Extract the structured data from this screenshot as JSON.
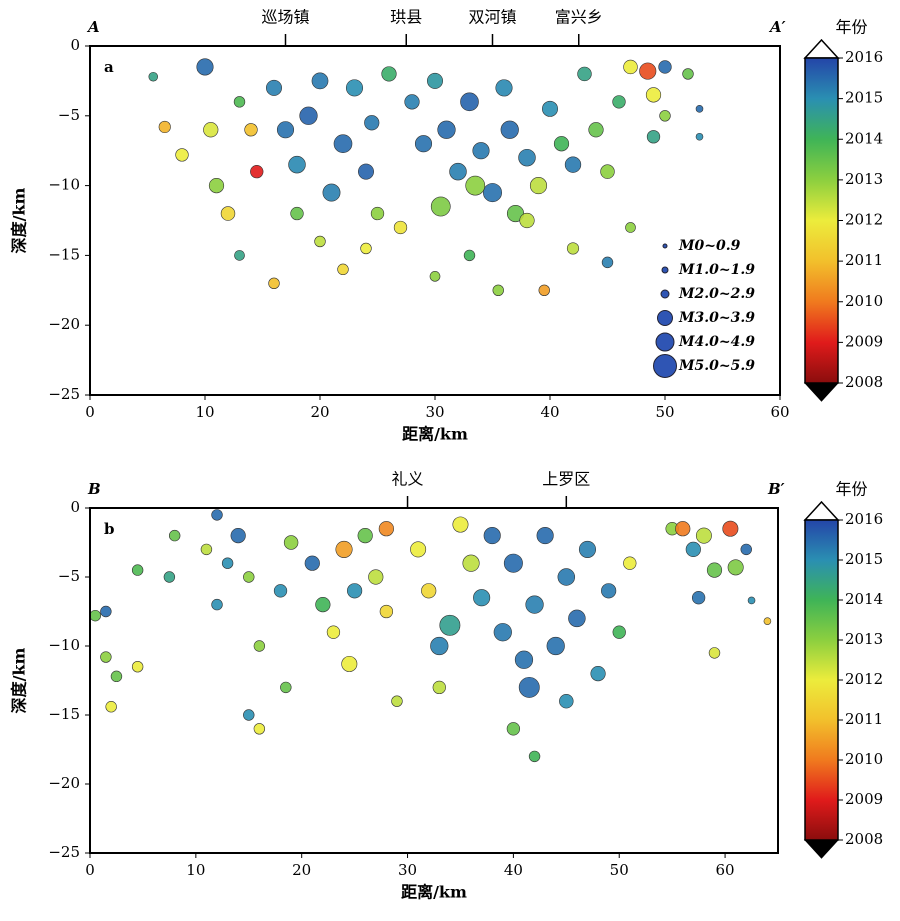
{
  "chart_data": [
    {
      "type": "scatter",
      "panel": "a",
      "start": "A",
      "end": "A′",
      "towns": [
        {
          "name": "巡场镇",
          "x": 17
        },
        {
          "name": "珙县",
          "x": 27.5
        },
        {
          "name": "双河镇",
          "x": 35
        },
        {
          "name": "富兴乡",
          "x": 42.5
        }
      ],
      "xlabel": "距离/km",
      "ylabel": "深度/km",
      "xlim": [
        0,
        60
      ],
      "xticks": [
        0,
        10,
        20,
        30,
        40,
        50,
        60
      ],
      "ylim": [
        -25,
        0
      ],
      "yticks": [
        {
          "value": -25,
          "label": "−25"
        },
        {
          "value": -20,
          "label": "−20"
        },
        {
          "value": -15,
          "label": "−15"
        },
        {
          "value": -10,
          "label": "−10"
        },
        {
          "value": -5,
          "label": "−5"
        },
        0
      ],
      "legend": [
        "M0~0.9",
        "M1.0~1.9",
        "M2.0~2.9",
        "M3.0~3.9",
        "M4.0~4.9",
        "M5.0~5.9"
      ],
      "colorbar": {
        "title": "年份",
        "range": [
          2008,
          2016
        ],
        "ticks": [
          2008,
          2009,
          2010,
          2011,
          2012,
          2013,
          2014,
          2015,
          2016
        ],
        "colors": [
          "#8a0d0d",
          "#e01b1b",
          "#f07a1e",
          "#f2c02c",
          "#ecec3c",
          "#8ccf3f",
          "#3fb457",
          "#2a8fb2",
          "#2445a8"
        ]
      },
      "x": [
        5.5,
        6.5,
        10,
        10.5,
        8,
        11,
        12,
        13,
        14,
        14.5,
        16,
        17,
        18,
        19,
        20,
        21,
        22,
        23,
        24,
        24.5,
        18,
        20,
        22,
        16,
        25,
        26,
        27,
        28,
        29,
        30,
        30.5,
        31,
        32,
        33,
        34,
        35,
        36,
        36.5,
        37,
        38,
        39,
        40,
        41,
        42,
        43,
        44,
        45,
        46,
        47,
        48.5,
        49,
        50,
        49,
        50,
        52,
        53,
        53,
        39.5,
        35.5,
        42,
        33,
        30,
        24,
        13,
        38,
        33.5,
        45,
        47
      ],
      "y": [
        -2.2,
        -5.8,
        -1.5,
        -6,
        -7.8,
        -10,
        -12,
        -4,
        -6,
        -9,
        -3,
        -6,
        -8.5,
        -5,
        -2.5,
        -10.5,
        -7,
        -3,
        -9,
        -5.5,
        -12,
        -14,
        -16,
        -17,
        -12,
        -2,
        -13,
        -4,
        -7,
        -2.5,
        -11.5,
        -6,
        -9,
        -4,
        -7.5,
        -10.5,
        -3,
        -6,
        -12,
        -8,
        -10,
        -4.5,
        -7,
        -8.5,
        -2,
        -6,
        -9,
        -4,
        -1.5,
        -1.8,
        -3.5,
        -1.5,
        -6.5,
        -5,
        -2,
        -4.5,
        -6.5,
        -17.5,
        -17.5,
        -14.5,
        -15,
        -16.5,
        -14.5,
        -15,
        -12.5,
        -10,
        -15.5,
        -13
      ],
      "magnitude": [
        1.5,
        2.2,
        3.5,
        3,
        2.5,
        3,
        2.8,
        2,
        2.5,
        2.5,
        3.2,
        3.5,
        3.6,
        3.8,
        3.4,
        3.7,
        3.9,
        3.5,
        3.2,
        3,
        2.5,
        2,
        2,
        2,
        2.5,
        3,
        2.5,
        3,
        3.5,
        3.2,
        4.2,
        3.8,
        3.6,
        3.9,
        3.5,
        4,
        3.5,
        3.8,
        3.5,
        3.6,
        3.5,
        3.2,
        3,
        3.3,
        2.8,
        3,
        2.8,
        2.5,
        2.8,
        3.5,
        3,
        2.5,
        2.5,
        2,
        2,
        1,
        1,
        2,
        2,
        2.2,
        2,
        1.8,
        2,
        1.8,
        3,
        4.2,
        2,
        1.8
      ],
      "year": [
        2014.5,
        2010.8,
        2015.5,
        2012.2,
        2012,
        2013,
        2011.5,
        2013.8,
        2011,
        2009,
        2015.2,
        2015.4,
        2015.1,
        2015.6,
        2015.3,
        2015.2,
        2015.5,
        2015,
        2015.6,
        2015.3,
        2013.5,
        2012.5,
        2011.5,
        2011,
        2013,
        2014.2,
        2011.8,
        2015.2,
        2015.4,
        2014.8,
        2013.2,
        2015.5,
        2015.2,
        2015.6,
        2015.3,
        2015.4,
        2015.1,
        2015.5,
        2013.5,
        2015.2,
        2012.5,
        2015,
        2014,
        2015.3,
        2014.5,
        2013.5,
        2013,
        2014.2,
        2012,
        2009.5,
        2012,
        2015.5,
        2014.5,
        2013,
        2013.5,
        2015.5,
        2015,
        2010.5,
        2013,
        2012.5,
        2014,
        2013,
        2012,
        2014.5,
        2012.5,
        2013,
        2015.2,
        2013
      ]
    },
    {
      "type": "scatter",
      "panel": "b",
      "start": "B",
      "end": "B′",
      "towns": [
        {
          "name": "礼义",
          "x": 30
        },
        {
          "name": "上罗区",
          "x": 45
        }
      ],
      "xlabel": "距离/km",
      "ylabel": "深度/km",
      "xlim": [
        0,
        65
      ],
      "xticks": [
        0,
        10,
        20,
        30,
        40,
        50,
        60
      ],
      "ylim": [
        -25,
        0
      ],
      "yticks": [
        {
          "value": -25,
          "label": "−25"
        },
        {
          "value": -20,
          "label": "−20"
        },
        {
          "value": -15,
          "label": "−15"
        },
        {
          "value": -10,
          "label": "−10"
        },
        {
          "value": -5,
          "label": "−5"
        },
        0
      ],
      "colorbar": {
        "title": "年份",
        "range": [
          2008,
          2016
        ],
        "ticks": [
          2008,
          2009,
          2010,
          2011,
          2012,
          2013,
          2014,
          2015,
          2016
        ],
        "colors": [
          "#8a0d0d",
          "#e01b1b",
          "#f07a1e",
          "#f2c02c",
          "#ecec3c",
          "#8ccf3f",
          "#3fb457",
          "#2a8fb2",
          "#2445a8"
        ]
      },
      "x": [
        0.5,
        1.5,
        1.5,
        2.5,
        2,
        4.5,
        4.5,
        8,
        7.5,
        11,
        12,
        13,
        12,
        14,
        15,
        15,
        16,
        16,
        18,
        19,
        18.5,
        21,
        22,
        23,
        24,
        25,
        24.5,
        26,
        27,
        28,
        28,
        29,
        31,
        32,
        33,
        34,
        33,
        35,
        36,
        37,
        38,
        39,
        40,
        41,
        41.5,
        42,
        43,
        44,
        45,
        46,
        47,
        48,
        49,
        40,
        42,
        45,
        50,
        51,
        55,
        56,
        57,
        58,
        59,
        60.5,
        61,
        57.5,
        59,
        62,
        62.5,
        64
      ],
      "y": [
        -7.8,
        -7.5,
        -10.8,
        -12.2,
        -14.4,
        -4.5,
        -11.5,
        -2,
        -5,
        -3,
        -0.5,
        -4,
        -7,
        -2,
        -5,
        -15,
        -10,
        -16,
        -6,
        -2.5,
        -13,
        -4,
        -7,
        -9,
        -3,
        -6,
        -11.3,
        -2,
        -5,
        -7.5,
        -1.5,
        -14,
        -3,
        -6,
        -10,
        -8.5,
        -13,
        -1.2,
        -4,
        -6.5,
        -2,
        -9,
        -4,
        -11,
        -13,
        -7,
        -2,
        -10,
        -5,
        -8,
        -3,
        -12,
        -6,
        -16,
        -18,
        -14,
        -9,
        -4,
        -1.5,
        -1.5,
        -3,
        -2,
        -4.5,
        -1.5,
        -4.3,
        -6.5,
        -10.5,
        -3,
        -6.7,
        -8.2
      ],
      "magnitude": [
        2,
        2,
        2,
        2,
        2,
        2,
        2,
        2,
        2,
        2,
        2,
        2,
        2,
        3,
        2,
        2,
        2,
        2,
        2.5,
        2.8,
        2,
        3,
        3,
        2.5,
        3.5,
        3,
        3.2,
        3,
        3,
        2.5,
        3,
        2,
        3.2,
        3,
        3.8,
        4.5,
        2.5,
        3.2,
        3.5,
        3.5,
        3.5,
        3.8,
        4,
        3.8,
        4.5,
        3.8,
        3.5,
        3.8,
        3.6,
        3.6,
        3.5,
        3,
        3,
        2.5,
        2,
        2.8,
        2.5,
        2.5,
        2.5,
        3,
        3,
        3.2,
        3,
        3.2,
        3.2,
        2.5,
        2,
        2,
        1,
        1
      ],
      "year": [
        2013.5,
        2015.5,
        2013,
        2013.5,
        2012,
        2013.8,
        2012,
        2013.5,
        2014.5,
        2012.5,
        2015.5,
        2015,
        2015,
        2015.5,
        2013,
        2015,
        2013,
        2012,
        2015,
        2013,
        2013.5,
        2015.5,
        2014,
        2012,
        2010.5,
        2015,
        2012,
        2013.5,
        2012.5,
        2011.5,
        2010.2,
        2012.5,
        2012,
        2011.5,
        2015.2,
        2014.6,
        2012.5,
        2012,
        2012.5,
        2015,
        2015.5,
        2015.3,
        2015.5,
        2015.4,
        2015.5,
        2015.2,
        2015.5,
        2015.4,
        2015.3,
        2015.5,
        2015.2,
        2015,
        2015.3,
        2013.5,
        2014,
        2015,
        2014,
        2012,
        2013,
        2010,
        2015,
        2012.5,
        2013.5,
        2009.5,
        2013.2,
        2015.4,
        2012.2,
        2015.5,
        2015,
        2011
      ]
    }
  ]
}
